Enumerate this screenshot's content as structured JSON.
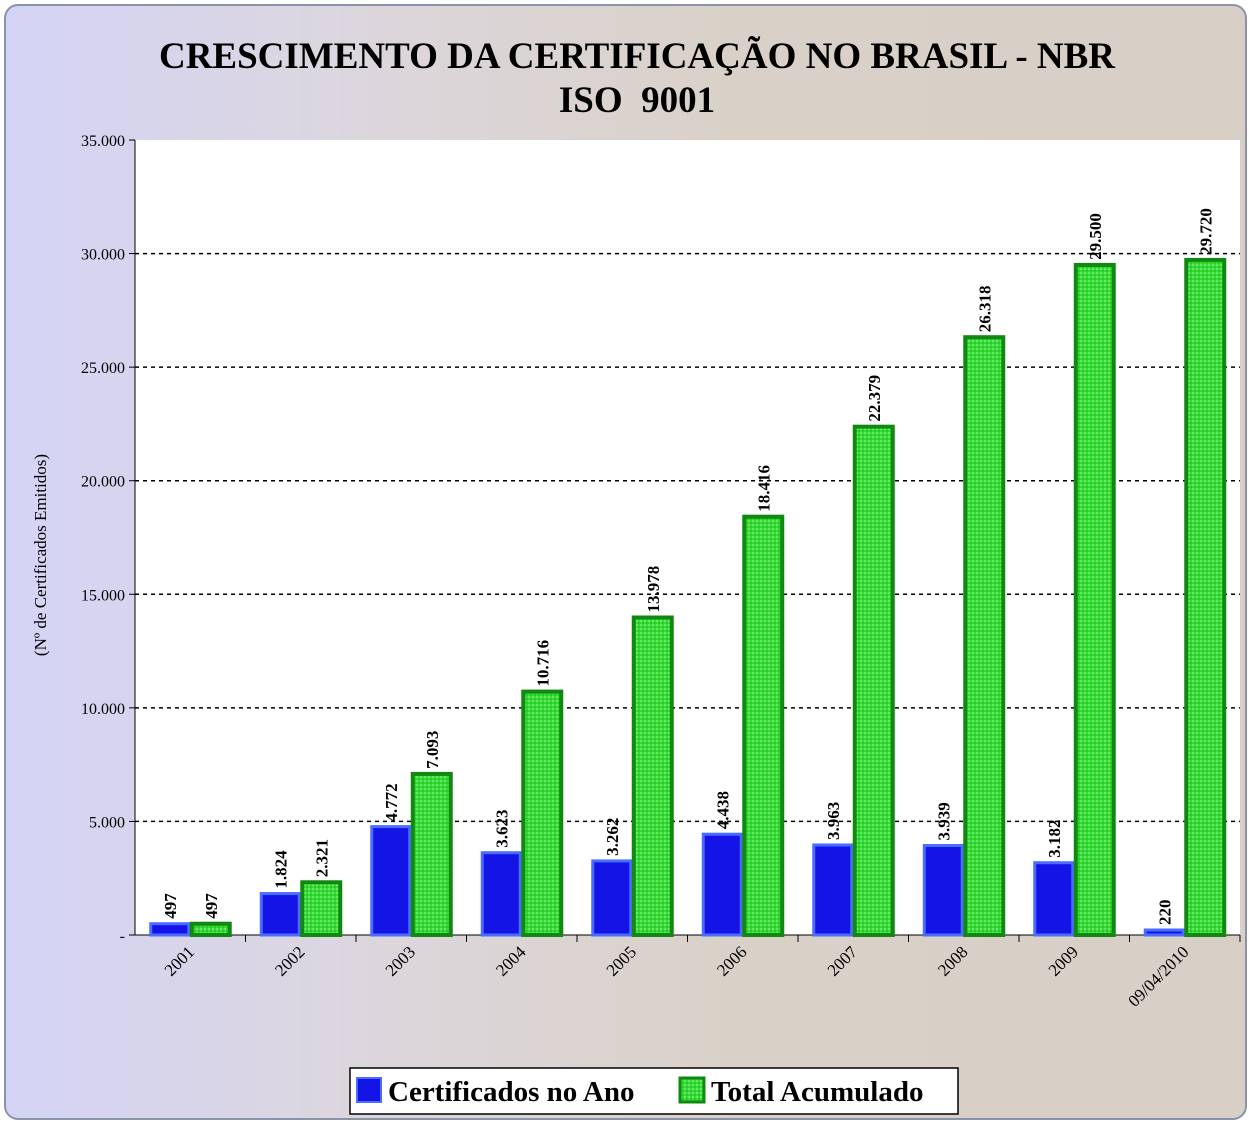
{
  "chart_data": {
    "type": "bar",
    "title": [
      "CRESCIMENTO DA CERTIFICAÇÃO NO BRASIL - NBR",
      "ISO  9001"
    ],
    "y_label": "(Nº de Certificados Emitidos)",
    "categories": [
      "2001",
      "2002",
      "2003",
      "2004",
      "2005",
      "2006",
      "2007",
      "2008",
      "2009",
      "09/04/2010"
    ],
    "series": [
      {
        "name": "Certificados no Ano",
        "color": "#1414e6",
        "values": [
          497,
          1824,
          4772,
          3623,
          3262,
          4438,
          3963,
          3939,
          3182,
          220
        ],
        "value_labels": [
          "497",
          "1.824",
          "4.772",
          "3.623",
          "3.262",
          "4.438",
          "3.963",
          "3.939",
          "3.182",
          "220"
        ]
      },
      {
        "name": "Total Acumulado",
        "color": "#33dd33",
        "values": [
          497,
          2321,
          7093,
          10716,
          13978,
          18416,
          22379,
          26318,
          29500,
          29720
        ],
        "value_labels": [
          "497",
          "2.321",
          "7.093",
          "10.716",
          "13.978",
          "18.416",
          "22.379",
          "26.318",
          "29.500",
          "29.720"
        ]
      }
    ],
    "ylim": [
      0,
      35000
    ],
    "yticks": [
      {
        "value": 0,
        "label": "-"
      },
      {
        "value": 5000,
        "label": "5.000"
      },
      {
        "value": 10000,
        "label": "10.000"
      },
      {
        "value": 15000,
        "label": "15.000"
      },
      {
        "value": 20000,
        "label": "20.000"
      },
      {
        "value": 25000,
        "label": "25.000"
      },
      {
        "value": 30000,
        "label": "30.000"
      },
      {
        "value": 35000,
        "label": "35.000"
      }
    ],
    "grid": true,
    "legend": "bottom"
  }
}
